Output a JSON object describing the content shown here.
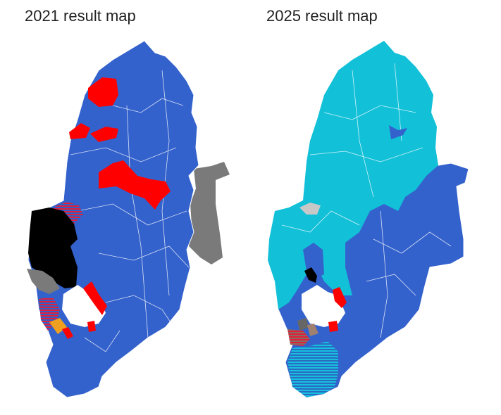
{
  "maps": [
    {
      "title": "2021 result map"
    },
    {
      "title": "2025 result map"
    }
  ]
}
